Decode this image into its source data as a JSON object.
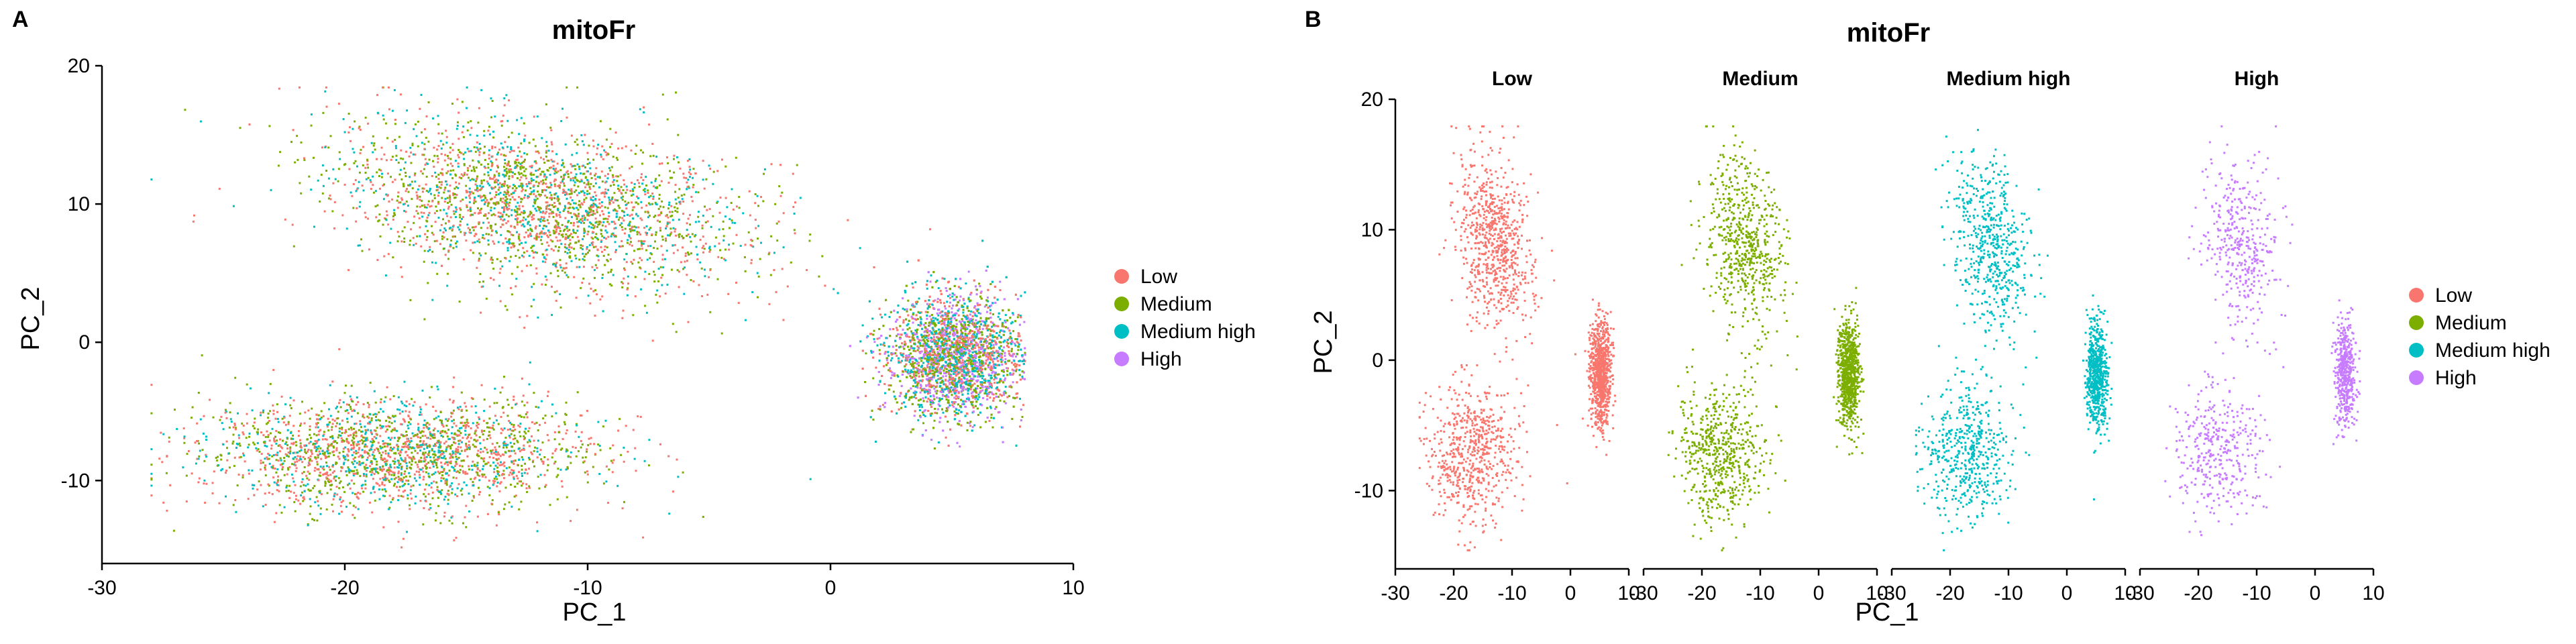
{
  "panel_a": {
    "letter": "A",
    "chart_data": {
      "type": "scatter",
      "title": "mitoFr",
      "xlabel": "PC_1",
      "ylabel": "PC_2",
      "xlim": [
        -30,
        10
      ],
      "ylim": [
        -16,
        20
      ],
      "xticks": [
        "-30",
        "-20",
        "-10",
        "0",
        "10"
      ],
      "yticks": [
        "-10",
        "0",
        "10",
        "20"
      ],
      "legend_position": "right",
      "series": [
        {
          "name": "Low",
          "color": "#F8766D"
        },
        {
          "name": "Medium",
          "color": "#7CAE00"
        },
        {
          "name": "Medium high",
          "color": "#00BFC4"
        },
        {
          "name": "High",
          "color": "#C77CFF"
        }
      ],
      "clusters": [
        {
          "label": "upper arm",
          "center": [
            -12,
            10
          ],
          "spread": [
            4.2,
            2.8
          ]
        },
        {
          "label": "lower arm",
          "center": [
            -18,
            -8
          ],
          "spread": [
            4.0,
            2.0
          ]
        },
        {
          "label": "main cluster",
          "center": [
            5,
            -1
          ],
          "spread": [
            1.4,
            2.2
          ]
        }
      ]
    }
  },
  "panel_b": {
    "letter": "B",
    "chart_data": {
      "type": "scatter",
      "title": "mitoFr",
      "xlabel": "PC_1",
      "ylabel": "PC_2",
      "xlim": [
        -30,
        10
      ],
      "ylim": [
        -16,
        20
      ],
      "xticks": [
        "-30",
        "-20",
        "-10",
        "0",
        "10"
      ],
      "yticks": [
        "-10",
        "0",
        "10",
        "20"
      ],
      "legend_position": "right",
      "facets": [
        {
          "name": "Low",
          "color": "#F8766D",
          "points": 2200
        },
        {
          "name": "Medium",
          "color": "#7CAE00",
          "points": 2000
        },
        {
          "name": "Medium high",
          "color": "#00BFC4",
          "points": 1700
        },
        {
          "name": "High",
          "color": "#C77CFF",
          "points": 1200
        }
      ]
    }
  }
}
